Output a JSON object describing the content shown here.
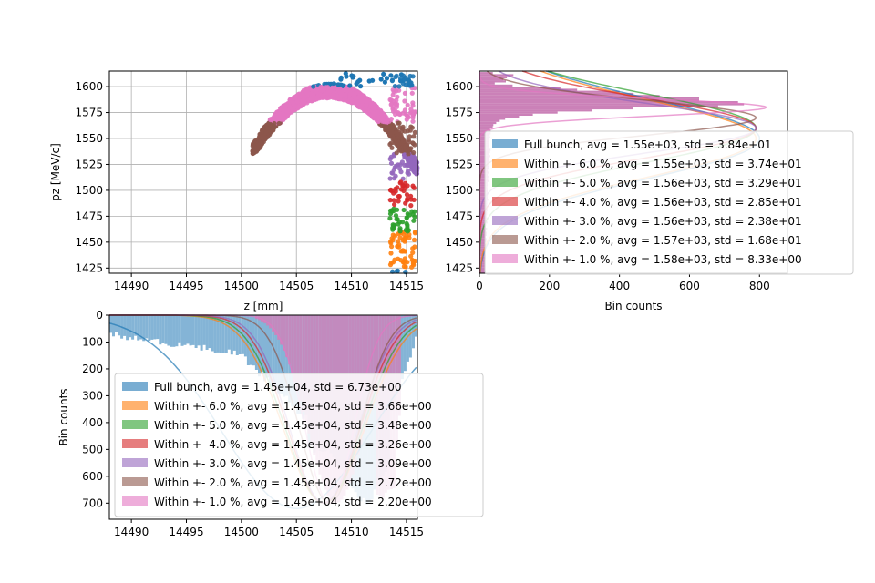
{
  "colors": {
    "blue": "#1f77b4",
    "orange": "#ff7f0e",
    "green": "#2ca02c",
    "red": "#d62728",
    "purple": "#9467bd",
    "brown": "#8c564b",
    "pink": "#e377c2"
  },
  "chart_data": [
    {
      "id": "scatter",
      "type": "scatter",
      "xlabel": "z [mm]",
      "ylabel": "pz [MeV/c]",
      "xlim": [
        14488,
        14516
      ],
      "ylim": [
        1420,
        1615
      ],
      "xticks": [
        "14490",
        "14495",
        "14500",
        "14505",
        "14510",
        "14515"
      ],
      "yticks": [
        "1425",
        "1450",
        "1475",
        "1500",
        "1525",
        "1550",
        "1575",
        "1600"
      ],
      "grid": true,
      "description_bands": [
        {
          "name": "Full bunch",
          "pz_range": [
            1420,
            1615
          ]
        },
        {
          "name": "Within +- 6.0 %",
          "pz_range": [
            1420,
            1460
          ]
        },
        {
          "name": "Within +- 5.0 %",
          "pz_range": [
            1460,
            1485
          ]
        },
        {
          "name": "Within +- 4.0 %",
          "pz_range": [
            1485,
            1510
          ]
        },
        {
          "name": "Within +- 3.0 %",
          "pz_range": [
            1510,
            1535
          ]
        },
        {
          "name": "Within +- 2.0 %",
          "pz_range": [
            1535,
            1565
          ]
        },
        {
          "name": "Within +- 1.0 %",
          "pz_range": [
            1565,
            1600
          ]
        }
      ]
    },
    {
      "id": "pz-hist",
      "type": "bar",
      "orientation": "horizontal",
      "xlabel": "Bin counts",
      "xlim": [
        0,
        880
      ],
      "ylim": [
        1420,
        1615
      ],
      "xticks": [
        "0",
        "200",
        "400",
        "600",
        "800"
      ],
      "yticks": [
        "1425",
        "1450",
        "1475",
        "1500",
        "1525",
        "1550",
        "1575",
        "1600"
      ],
      "legend_position": "center-right",
      "series": [
        {
          "name": "Full bunch, avg = 1.55e+03, std = 3.84e+01",
          "avg": 1550,
          "std": 38.4,
          "peak": 800
        },
        {
          "name": "Within +- 6.0 %, avg = 1.55e+03, std = 3.74e+01",
          "avg": 1550,
          "std": 37.4,
          "peak": 790
        },
        {
          "name": "Within +- 5.0 %, avg = 1.56e+03, std = 3.29e+01",
          "avg": 1560,
          "std": 32.9,
          "peak": 790
        },
        {
          "name": "Within +- 4.0 %, avg = 1.56e+03, std = 2.85e+01",
          "avg": 1560,
          "std": 28.5,
          "peak": 790
        },
        {
          "name": "Within +- 3.0 %, avg = 1.56e+03, std = 2.38e+01",
          "avg": 1560,
          "std": 23.8,
          "peak": 790
        },
        {
          "name": "Within +- 2.0 %, avg = 1.57e+03, std = 1.68e+01",
          "avg": 1570,
          "std": 16.8,
          "peak": 790
        },
        {
          "name": "Within +- 1.0 %, avg = 1.58e+03, std = 8.33e+00",
          "avg": 1580,
          "std": 8.33,
          "peak": 820
        }
      ]
    },
    {
      "id": "z-hist",
      "type": "bar",
      "orientation": "vertical-inverted",
      "ylabel": "Bin counts",
      "xlim": [
        14488,
        14516
      ],
      "ylim": [
        0,
        760
      ],
      "xticks": [
        "14490",
        "14495",
        "14500",
        "14505",
        "14510",
        "14515"
      ],
      "yticks": [
        "0",
        "100",
        "200",
        "300",
        "400",
        "500",
        "600",
        "700"
      ],
      "legend_position": "center-left",
      "series": [
        {
          "name": "Full bunch, avg = 1.45e+04, std = 6.73e+00",
          "avg": 14505,
          "std": 6.73,
          "peak": 720
        },
        {
          "name": "Within +- 6.0 %, avg = 1.45e+04, std = 3.66e+00",
          "avg": 14507.5,
          "std": 3.66,
          "peak": 700
        },
        {
          "name": "Within +- 5.0 %, avg = 1.45e+04, std = 3.48e+00",
          "avg": 14507.5,
          "std": 3.48,
          "peak": 700
        },
        {
          "name": "Within +- 4.0 %, avg = 1.45e+04, std = 3.26e+00",
          "avg": 14507.5,
          "std": 3.26,
          "peak": 700
        },
        {
          "name": "Within +- 3.0 %, avg = 1.45e+04, std = 3.09e+00",
          "avg": 14507.5,
          "std": 3.09,
          "peak": 700
        },
        {
          "name": "Within +- 2.0 %, avg = 1.45e+04, std = 2.72e+00",
          "avg": 14508,
          "std": 2.72,
          "peak": 700
        },
        {
          "name": "Within +- 1.0 %, avg = 1.45e+04, std = 2.20e+00",
          "avg": 14508,
          "std": 2.2,
          "peak": 700
        }
      ]
    }
  ]
}
